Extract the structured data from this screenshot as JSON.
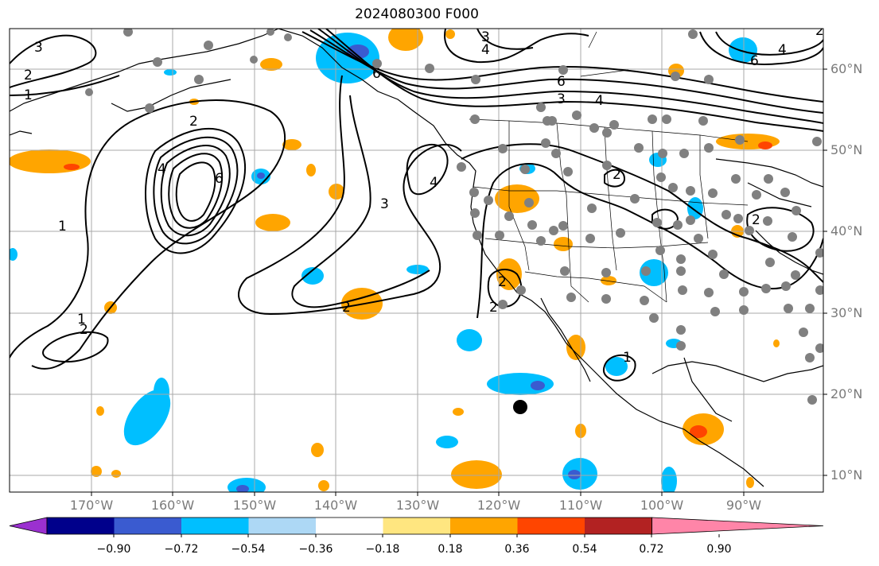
{
  "title": "2024080300 F000",
  "lat_labels": [
    "60°N",
    "50°N",
    "40°N",
    "30°N",
    "20°N",
    "10°N"
  ],
  "lon_labels": [
    "170°W",
    "160°W",
    "150°W",
    "140°W",
    "130°W",
    "120°W",
    "110°W",
    "100°W",
    "90°W"
  ],
  "colorbar": {
    "ticks": [
      "−0.90",
      "−0.72",
      "−0.54",
      "−0.36",
      "−0.18",
      "0.18",
      "0.36",
      "0.54",
      "0.72",
      "0.90"
    ],
    "colors": [
      "#9b30d0",
      "#00008b",
      "#3a5bd0",
      "#00bfff",
      "#add8f5",
      "#ffffff",
      "#ffe680",
      "#ffa500",
      "#ff4500",
      "#b22222",
      "#ff85a8"
    ]
  },
  "contour_labels": [
    "3",
    "2",
    "1",
    "2",
    "4",
    "6",
    "3",
    "4",
    "6",
    "2",
    "1",
    "3",
    "4",
    "2",
    "2",
    "2",
    "1",
    "2",
    "1",
    "2",
    "6",
    "3",
    "4",
    "6",
    "4",
    "2"
  ],
  "colors": {
    "grid": "#a8a8a8",
    "station": "#808080",
    "coast": "#000000",
    "contour": "#000000"
  }
}
